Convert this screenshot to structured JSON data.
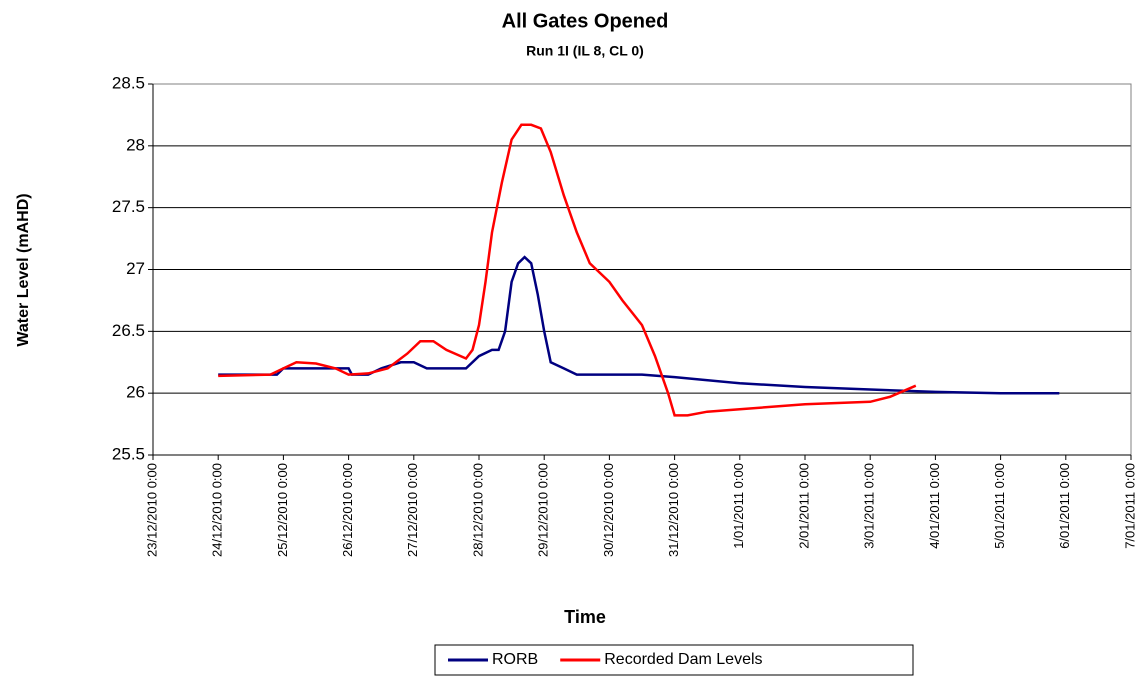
{
  "chart_data": {
    "type": "line",
    "title": "All Gates Opened",
    "subtitle": "Run 1I (IL 8, CL 0)",
    "x_label": "Time",
    "y_label": "Water Level (mAHD)",
    "ylim": [
      25.5,
      28.5
    ],
    "yticks": [
      25.5,
      26,
      26.5,
      27,
      27.5,
      28,
      28.5
    ],
    "xlim": [
      "2010-12-23T00:00",
      "2011-01-07T00:00"
    ],
    "xticks": [
      {
        "value": "2010-12-23T00:00",
        "label": "23/12/2010 0:00"
      },
      {
        "value": "2010-12-24T00:00",
        "label": "24/12/2010 0:00"
      },
      {
        "value": "2010-12-25T00:00",
        "label": "25/12/2010 0:00"
      },
      {
        "value": "2010-12-26T00:00",
        "label": "26/12/2010 0:00"
      },
      {
        "value": "2010-12-27T00:00",
        "label": "27/12/2010 0:00"
      },
      {
        "value": "2010-12-28T00:00",
        "label": "28/12/2010 0:00"
      },
      {
        "value": "2010-12-29T00:00",
        "label": "29/12/2010 0:00"
      },
      {
        "value": "2010-12-30T00:00",
        "label": "30/12/2010 0:00"
      },
      {
        "value": "2010-12-31T00:00",
        "label": "31/12/2010 0:00"
      },
      {
        "value": "2011-01-01T00:00",
        "label": "1/01/2011 0:00"
      },
      {
        "value": "2011-01-02T00:00",
        "label": "2/01/2011 0:00"
      },
      {
        "value": "2011-01-03T00:00",
        "label": "3/01/2011 0:00"
      },
      {
        "value": "2011-01-04T00:00",
        "label": "4/01/2011 0:00"
      },
      {
        "value": "2011-01-05T00:00",
        "label": "5/01/2011 0:00"
      },
      {
        "value": "2011-01-06T00:00",
        "label": "6/01/2011 0:00"
      },
      {
        "value": "2011-01-07T00:00",
        "label": "7/01/2011 0:00"
      }
    ],
    "grid": true,
    "legend": "bottom",
    "series": [
      {
        "name": "RORB",
        "color": "#000080",
        "x": [
          "2010-12-24T00:00",
          "2010-12-24T21:36",
          "2010-12-25T00:00",
          "2010-12-26T00:00",
          "2010-12-26T01:12",
          "2010-12-26T07:12",
          "2010-12-26T12:00",
          "2010-12-26T19:12",
          "2010-12-27T00:00",
          "2010-12-27T04:48",
          "2010-12-27T19:12",
          "2010-12-28T00:00",
          "2010-12-28T04:48",
          "2010-12-28T07:12",
          "2010-12-28T09:36",
          "2010-12-28T12:00",
          "2010-12-28T14:24",
          "2010-12-28T16:48",
          "2010-12-28T19:12",
          "2010-12-28T21:36",
          "2010-12-29T00:00",
          "2010-12-29T02:24",
          "2010-12-29T07:12",
          "2010-12-29T12:00",
          "2010-12-30T00:00",
          "2010-12-30T12:00",
          "2010-12-31T00:00",
          "2011-01-01T00:00",
          "2011-01-02T00:00",
          "2011-01-03T00:00",
          "2011-01-04T00:00",
          "2011-01-05T00:00",
          "2011-01-05T21:36"
        ],
        "values": [
          26.15,
          26.15,
          26.2,
          26.2,
          26.15,
          26.15,
          26.2,
          26.25,
          26.25,
          26.2,
          26.2,
          26.3,
          26.35,
          26.35,
          26.5,
          26.9,
          27.05,
          27.1,
          27.05,
          26.8,
          26.5,
          26.25,
          26.2,
          26.15,
          26.15,
          26.15,
          26.13,
          26.08,
          26.05,
          26.03,
          26.01,
          26.0,
          26.0
        ]
      },
      {
        "name": "Recorded Dam Levels",
        "color": "#ff0000",
        "x": [
          "2010-12-24T00:00",
          "2010-12-24T19:12",
          "2010-12-25T00:00",
          "2010-12-25T04:48",
          "2010-12-25T12:00",
          "2010-12-25T19:12",
          "2010-12-26T00:00",
          "2010-12-26T07:12",
          "2010-12-26T14:24",
          "2010-12-26T21:36",
          "2010-12-27T02:24",
          "2010-12-27T07:12",
          "2010-12-27T12:00",
          "2010-12-27T19:12",
          "2010-12-27T21:36",
          "2010-12-28T00:00",
          "2010-12-28T02:24",
          "2010-12-28T04:48",
          "2010-12-28T08:24",
          "2010-12-28T12:00",
          "2010-12-28T15:36",
          "2010-12-28T19:12",
          "2010-12-28T22:48",
          "2010-12-29T02:24",
          "2010-12-29T07:12",
          "2010-12-29T12:00",
          "2010-12-29T16:48",
          "2010-12-30T00:00",
          "2010-12-30T04:48",
          "2010-12-30T12:00",
          "2010-12-30T16:48",
          "2010-12-30T21:36",
          "2010-12-31T00:00",
          "2010-12-31T04:48",
          "2010-12-31T12:00",
          "2011-01-01T00:00",
          "2011-01-02T00:00",
          "2011-01-03T00:00",
          "2011-01-03T07:12",
          "2011-01-03T16:48"
        ],
        "values": [
          26.14,
          26.15,
          26.2,
          26.25,
          26.24,
          26.2,
          26.15,
          26.16,
          26.2,
          26.32,
          26.42,
          26.42,
          26.35,
          26.28,
          26.35,
          26.55,
          26.9,
          27.3,
          27.7,
          28.05,
          28.17,
          28.17,
          28.14,
          27.95,
          27.6,
          27.3,
          27.05,
          26.9,
          26.75,
          26.55,
          26.3,
          26.0,
          25.82,
          25.82,
          25.85,
          25.87,
          25.91,
          25.93,
          25.97,
          26.06
        ]
      }
    ]
  }
}
